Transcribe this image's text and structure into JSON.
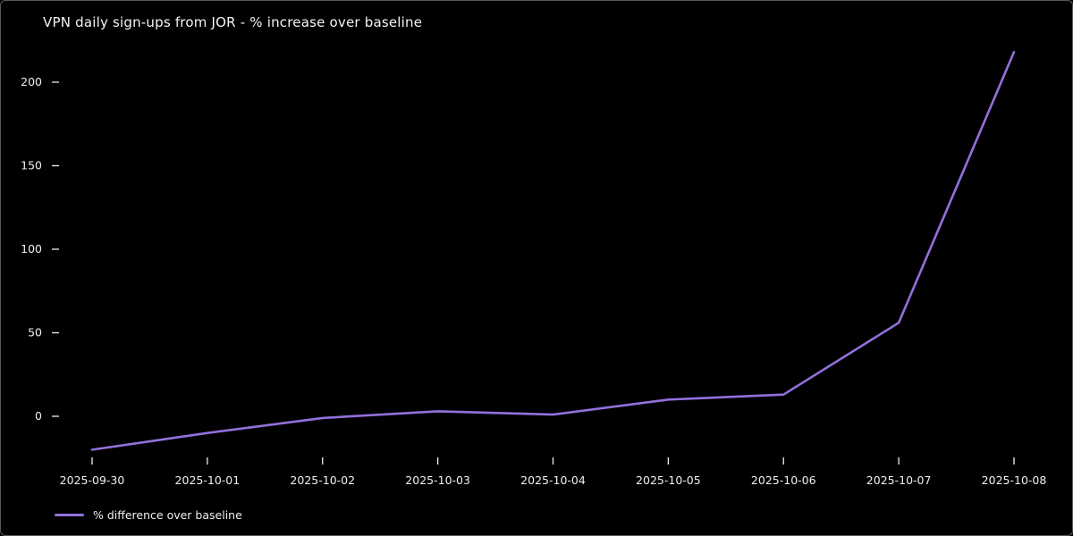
{
  "window": {
    "background": "#000000",
    "border_color": "#5a5a5a",
    "text_color": "#f0f0f0"
  },
  "chart_data": {
    "type": "line",
    "title": "VPN daily sign-ups from JOR - % increase over baseline",
    "x": [
      "2025-09-30",
      "2025-10-01",
      "2025-10-02",
      "2025-10-03",
      "2025-10-04",
      "2025-10-05",
      "2025-10-06",
      "2025-10-07",
      "2025-10-08"
    ],
    "series": [
      {
        "name": "% difference over baseline",
        "values": [
          -20,
          -10,
          -1,
          3,
          1,
          10,
          13,
          56,
          218
        ],
        "color": "#9370db"
      }
    ],
    "yticks": [
      0,
      50,
      100,
      150,
      200
    ],
    "ylim": [
      -32,
      234
    ],
    "xlabel": "",
    "ylabel": "",
    "grid": false,
    "legend_position": "bottom-left",
    "background": "#000000",
    "tick_color": "#f0f0f0"
  }
}
